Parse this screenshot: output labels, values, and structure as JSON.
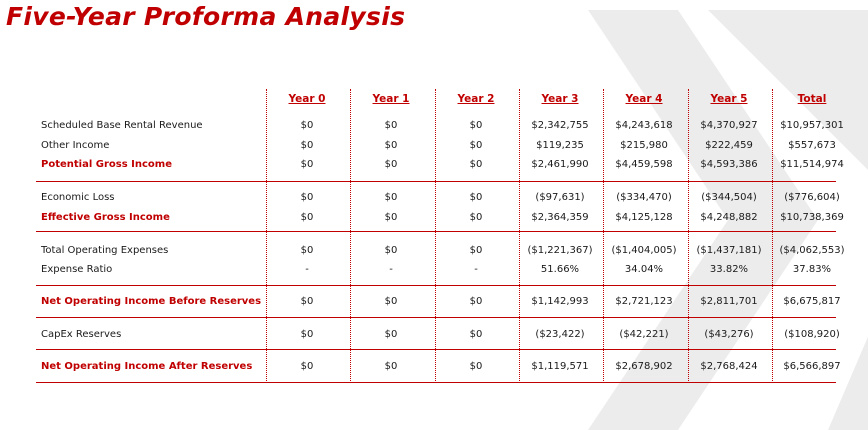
{
  "title": "Five-Year Proforma Analysis",
  "columns": [
    "Year 0",
    "Year 1",
    "Year 2",
    "Year 3",
    "Year 4",
    "Year 5",
    "Total"
  ],
  "rows": [
    {
      "label": "Scheduled Base Rental Revenue",
      "values": [
        "$0",
        "$0",
        "$0",
        "$2,342,755",
        "$4,243,618",
        "$4,370,927",
        "$10,957,301"
      ]
    },
    {
      "label": "Other Income",
      "values": [
        "$0",
        "$0",
        "$0",
        "$119,235",
        "$215,980",
        "$222,459",
        "$557,673"
      ]
    },
    {
      "label": "Potential Gross Income",
      "values": [
        "$0",
        "$0",
        "$0",
        "$2,461,990",
        "$4,459,598",
        "$4,593,386",
        "$11,514,974"
      ]
    },
    {
      "label": "Economic Loss",
      "values": [
        "$0",
        "$0",
        "$0",
        "($97,631)",
        "($334,470)",
        "($344,504)",
        "($776,604)"
      ]
    },
    {
      "label": "Effective Gross Income",
      "values": [
        "$0",
        "$0",
        "$0",
        "$2,364,359",
        "$4,125,128",
        "$4,248,882",
        "$10,738,369"
      ]
    },
    {
      "label": "Total Operating Expenses",
      "values": [
        "$0",
        "$0",
        "$0",
        "($1,221,367)",
        "($1,404,005)",
        "($1,437,181)",
        "($4,062,553)"
      ]
    },
    {
      "label": "Expense Ratio",
      "values": [
        "-",
        "-",
        "-",
        "51.66%",
        "34.04%",
        "33.82%",
        "37.83%"
      ]
    },
    {
      "label": "Net Operating Income Before Reserves",
      "values": [
        "$0",
        "$0",
        "$0",
        "$1,142,993",
        "$2,721,123",
        "$2,811,701",
        "$6,675,817"
      ]
    },
    {
      "label": "CapEx Reserves",
      "values": [
        "$0",
        "$0",
        "$0",
        "($23,422)",
        "($42,221)",
        "($43,276)",
        "($108,920)"
      ]
    },
    {
      "label": "Net Operating Income After Reserves",
      "values": [
        "$0",
        "$0",
        "$0",
        "$1,119,571",
        "$2,678,902",
        "$2,768,424",
        "$6,566,897"
      ]
    }
  ],
  "colors": {
    "accent": "#c00000"
  }
}
